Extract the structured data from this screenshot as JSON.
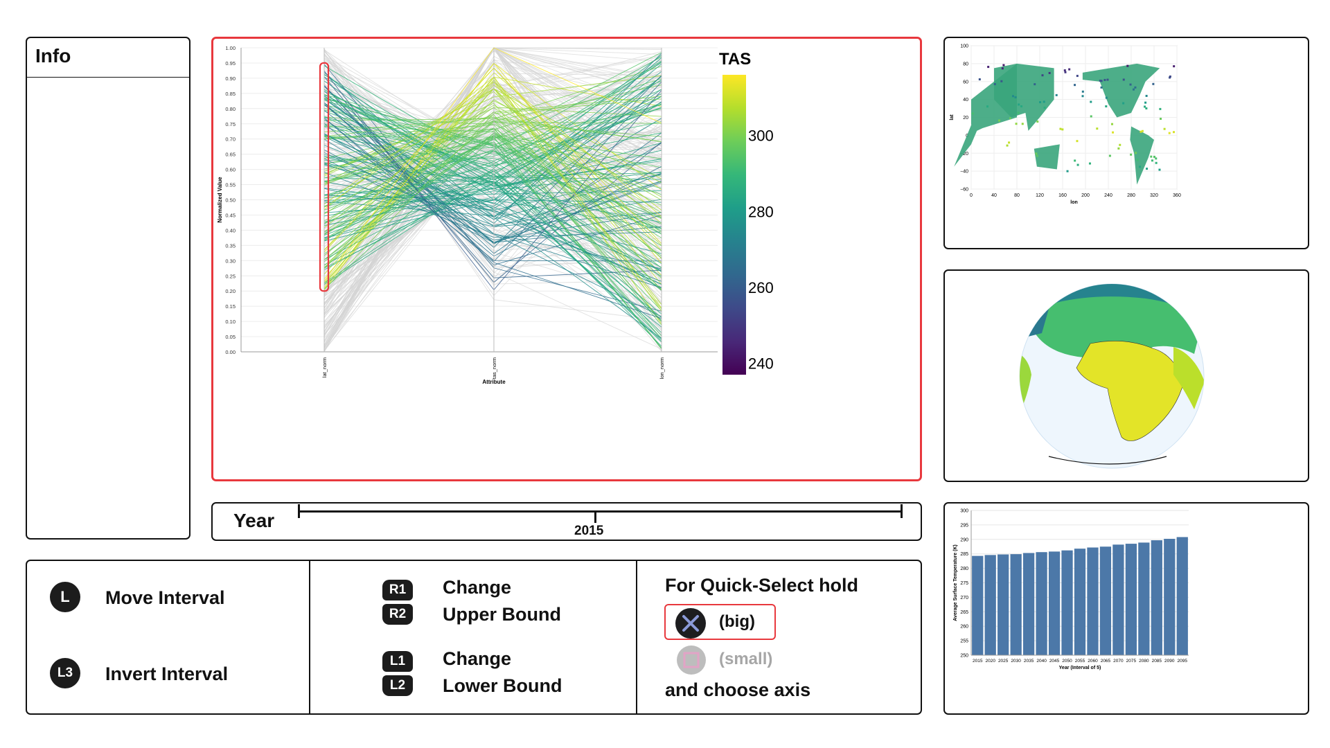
{
  "info": {
    "title": "Info"
  },
  "parallel_coords": {
    "y_axis_label": "Normalized Value",
    "x_axis_label": "Attribute",
    "axes": [
      "lat_norm",
      "tas_norm",
      "lon_norm"
    ],
    "y_ticks": [
      "0.00",
      "0.05",
      "0.10",
      "0.15",
      "0.20",
      "0.25",
      "0.30",
      "0.35",
      "0.40",
      "0.45",
      "0.50",
      "0.55",
      "0.60",
      "0.65",
      "0.70",
      "0.75",
      "0.80",
      "0.85",
      "0.90",
      "0.95",
      "1.00"
    ],
    "brush": {
      "axis": "lat_norm",
      "range": [
        0.2,
        0.95
      ]
    },
    "colorbar": {
      "title": "TAS",
      "ticks": [
        "300",
        "280",
        "260",
        "240"
      ],
      "range": [
        237,
        316
      ]
    },
    "colors": {
      "frame": "#e8383d",
      "unselected": "#d4d4d4"
    }
  },
  "year_slider": {
    "label": "Year",
    "value": "2015"
  },
  "controls": {
    "left": [
      {
        "button": "L",
        "label": "Move Interval"
      },
      {
        "button": "L3",
        "label": "Invert Interval"
      }
    ],
    "middle": [
      {
        "buttons": [
          "R1",
          "R2"
        ],
        "line1": "Change",
        "line2": "Upper Bound"
      },
      {
        "buttons": [
          "L1",
          "L2"
        ],
        "line1": "Change",
        "line2": "Lower Bound"
      }
    ],
    "right": {
      "heading": "For Quick-Select hold",
      "options": [
        {
          "icon": "cross-button-icon",
          "label": "(big)",
          "selected": true
        },
        {
          "icon": "square-button-icon",
          "label": "(small)",
          "selected": false
        }
      ],
      "footer": "and choose axis"
    }
  },
  "map2d": {
    "xlabel": "lon",
    "ylabel": "lat",
    "x_ticks": [
      "0",
      "40",
      "80",
      "120",
      "160",
      "200",
      "240",
      "280",
      "320",
      "360"
    ],
    "y_ticks": [
      "100",
      "80",
      "60",
      "40",
      "20",
      "0",
      "−20",
      "−40",
      "−60"
    ]
  },
  "globe": {
    "type": "orthographic-projection",
    "center": "Africa"
  },
  "chart_data": {
    "type": "bar",
    "title": "",
    "xlabel": "Year (Interval of 5)",
    "ylabel": "Average Surface Temperature (K)",
    "ylim": [
      250,
      300
    ],
    "y_ticks": [
      "300",
      "295",
      "290",
      "285",
      "280",
      "275",
      "270",
      "265",
      "260",
      "255",
      "250"
    ],
    "categories": [
      "2015",
      "2020",
      "2025",
      "2030",
      "2035",
      "2040",
      "2045",
      "2050",
      "2055",
      "2060",
      "2065",
      "2070",
      "2075",
      "2080",
      "2085",
      "2090",
      "2095"
    ],
    "values": [
      284.3,
      284.6,
      284.8,
      284.9,
      285.3,
      285.6,
      285.8,
      286.2,
      286.8,
      287.2,
      287.5,
      288.2,
      288.5,
      288.9,
      289.7,
      290.2,
      290.8
    ],
    "bar_color": "#4c78a8",
    "grid": true
  }
}
